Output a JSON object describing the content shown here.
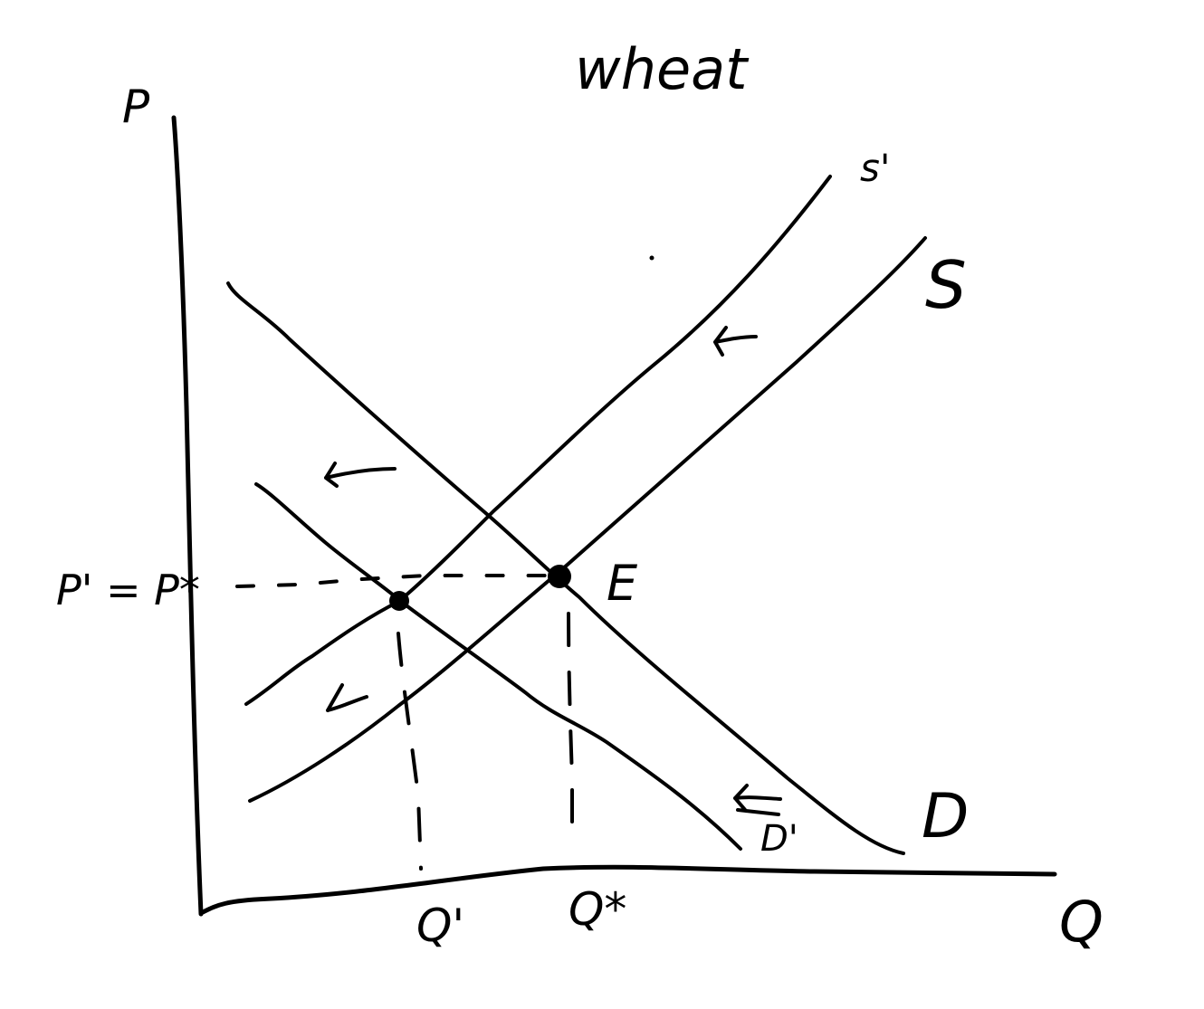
{
  "title": "wheat",
  "axes": {
    "y_label": "P",
    "x_label": "Q"
  },
  "curves": {
    "supply_original": "S",
    "supply_shifted": "s'",
    "demand_original": "D",
    "demand_shifted": "D'"
  },
  "points": {
    "equilibrium": "E"
  },
  "price_label": "P' = P*",
  "quantity_labels": {
    "new": "Q'",
    "original": "Q*"
  }
}
